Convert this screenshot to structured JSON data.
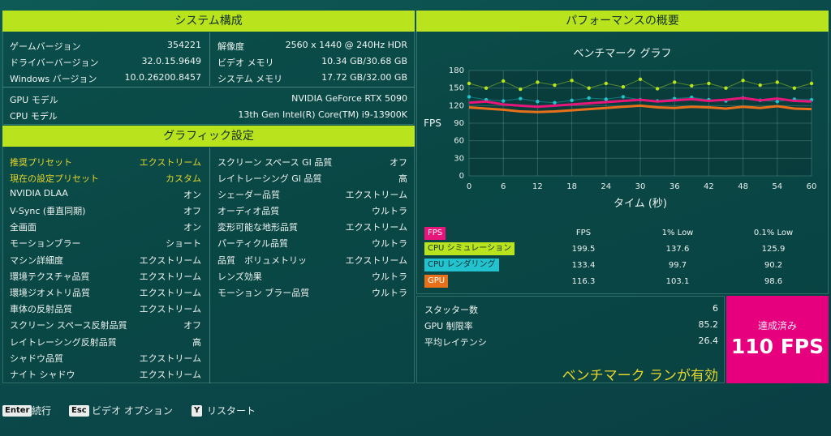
{
  "system": {
    "title": "システム構成",
    "left": [
      {
        "label": "ゲームバージョン",
        "value": "354221"
      },
      {
        "label": "ドライバーバージョン",
        "value": "32.0.15.9649"
      },
      {
        "label": "Windows バージョン",
        "value": "10.0.26200.8457"
      }
    ],
    "right": [
      {
        "label": "解像度",
        "value": "2560 x 1440 @ 240Hz HDR"
      },
      {
        "label": "ビデオ メモリ",
        "value": "10.34 GB/30.68 GB"
      },
      {
        "label": "システム メモリ",
        "value": "17.72 GB/32.00 GB"
      }
    ],
    "gpu": {
      "label": "GPU モデル",
      "value": "NVIDIA GeForce RTX 5090"
    },
    "cpu": {
      "label": "CPU モデル",
      "value": "13th Gen Intel(R) Core(TM) i9-13900K"
    }
  },
  "graphics": {
    "title": "グラフィック設定",
    "left": [
      {
        "label": "推奨プリセット",
        "value": "エクストリーム",
        "highlight": true
      },
      {
        "label": "現在の設定プリセット",
        "value": "カスタム",
        "highlight": true
      },
      {
        "label": "NVIDIA DLAA",
        "value": "オン"
      },
      {
        "label": "V-Sync (垂直同期)",
        "value": "オフ"
      },
      {
        "label": "全画面",
        "value": "オン"
      },
      {
        "label": "モーションブラー",
        "value": "ショート"
      },
      {
        "label": "マシン詳細度",
        "value": "エクストリーム"
      },
      {
        "label": "環境テクスチャ品質",
        "value": "エクストリーム"
      },
      {
        "label": "環境ジオメトリ品質",
        "value": "エクストリーム"
      },
      {
        "label": "車体の反射品質",
        "value": "エクストリーム"
      },
      {
        "label": "スクリーン スペース反射品質",
        "value": "オフ"
      },
      {
        "label": "レイトレーシング反射品質",
        "value": "高"
      },
      {
        "label": "シャドウ品質",
        "value": "エクストリーム"
      },
      {
        "label": "ナイト シャドウ",
        "value": "エクストリーム"
      }
    ],
    "right": [
      {
        "label": "スクリーン スペース GI 品質",
        "value": "オフ"
      },
      {
        "label": "レイトレーシング GI 品質",
        "value": "高"
      },
      {
        "label": "シェーダー品質",
        "value": "エクストリーム"
      },
      {
        "label": "オーディオ品質",
        "value": "ウルトラ"
      },
      {
        "label": "変形可能な地形品質",
        "value": "エクストリーム"
      },
      {
        "label": "パーティクル品質",
        "value": "ウルトラ"
      },
      {
        "label": "品質　ボリュメトリッ",
        "value": "エクストリーム"
      },
      {
        "label": "レンズ効果",
        "value": "ウルトラ"
      },
      {
        "label": "モーション ブラー品質",
        "value": "ウルトラ"
      }
    ]
  },
  "performance": {
    "title": "パフォーマンスの概要",
    "graph_title": "ベンチマーク グラフ",
    "table": {
      "headers": [
        "FPS",
        "1% Low",
        "0.1% Low"
      ],
      "rows": [
        {
          "name": "FPS",
          "color": "#e8157a",
          "values": [
            "",
            "",
            ""
          ]
        },
        {
          "name": "CPU シミュレーション",
          "color": "#b9e41d",
          "values": [
            "199.5",
            "137.6",
            "125.9"
          ]
        },
        {
          "name": "CPU レンダリング",
          "color": "#22c3cf",
          "values": [
            "133.4",
            "99.7",
            "90.2"
          ]
        },
        {
          "name": "GPU",
          "color": "#e8701a",
          "values": [
            "116.3",
            "103.1",
            "98.6"
          ]
        }
      ]
    },
    "stats": [
      {
        "label": "スタッター数",
        "value": "6"
      },
      {
        "label": "GPU 制限率",
        "value": "85.2"
      },
      {
        "label": "平均レイテンシ",
        "value": "26.4"
      }
    ],
    "banner": "ベンチマーク ランが有効",
    "achieved_label": "達成済み",
    "achieved_value": "110 FPS"
  },
  "chart_data": {
    "type": "line",
    "title": "ベンチマーク グラフ",
    "xlabel": "タイム (秒)",
    "ylabel": "FPS",
    "xlim": [
      0,
      60
    ],
    "ylim": [
      0,
      180
    ],
    "xticks": [
      0,
      6,
      12,
      18,
      24,
      30,
      36,
      42,
      48,
      54,
      60
    ],
    "yticks": [
      0,
      30,
      60,
      90,
      120,
      150,
      180
    ],
    "grid": true,
    "series": [
      {
        "name": "CPU シミュレーション",
        "color": "#b9e41d",
        "style": "scatter",
        "x": [
          0,
          3,
          6,
          9,
          12,
          15,
          18,
          21,
          24,
          27,
          30,
          33,
          36,
          39,
          42,
          45,
          48,
          51,
          54,
          57,
          60
        ],
        "values": [
          158,
          150,
          162,
          148,
          160,
          155,
          163,
          150,
          158,
          152,
          165,
          149,
          160,
          154,
          158,
          150,
          163,
          155,
          160,
          150,
          158
        ]
      },
      {
        "name": "CPU レンダリング",
        "color": "#22c3cf",
        "style": "scatter",
        "x": [
          0,
          3,
          6,
          9,
          12,
          15,
          18,
          21,
          24,
          27,
          30,
          33,
          36,
          39,
          42,
          45,
          48,
          51,
          54,
          57,
          60
        ],
        "values": [
          135,
          130,
          128,
          132,
          127,
          125,
          129,
          133,
          131,
          135,
          130,
          128,
          132,
          134,
          130,
          128,
          133,
          129,
          127,
          131,
          130
        ]
      },
      {
        "name": "FPS",
        "color": "#e8157a",
        "style": "line",
        "x": [
          0,
          3,
          6,
          9,
          12,
          15,
          18,
          21,
          24,
          27,
          30,
          33,
          36,
          39,
          42,
          45,
          48,
          51,
          54,
          57,
          60
        ],
        "values": [
          125,
          127,
          122,
          120,
          118,
          120,
          122,
          124,
          126,
          128,
          130,
          127,
          129,
          131,
          128,
          130,
          133,
          129,
          132,
          128,
          127
        ]
      },
      {
        "name": "GPU",
        "color": "#e8701a",
        "style": "line",
        "x": [
          0,
          3,
          6,
          9,
          12,
          15,
          18,
          21,
          24,
          27,
          30,
          33,
          36,
          39,
          42,
          45,
          48,
          51,
          54,
          57,
          60
        ],
        "values": [
          117,
          115,
          113,
          110,
          109,
          110,
          112,
          114,
          116,
          118,
          120,
          117,
          116,
          118,
          117,
          115,
          118,
          116,
          119,
          115,
          114
        ]
      }
    ]
  },
  "hints": [
    {
      "key": "Enter",
      "label": "続行"
    },
    {
      "key": "Esc",
      "label": "ビデオ オプション"
    },
    {
      "key": "Y",
      "label": "リスタート"
    }
  ]
}
